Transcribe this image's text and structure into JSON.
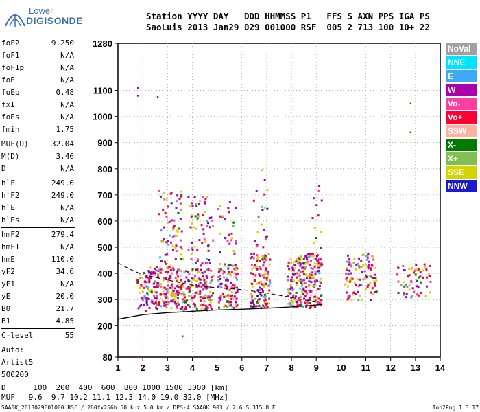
{
  "logo": {
    "line1": "Lowell",
    "line2": "DIGISONDE"
  },
  "header": {
    "line1": "Station YYYY DAY   DDD HHMMSS P1   FFS S AXN PPS IGA PS",
    "line2": "SaoLuis 2013 Jan29 029 001000 RSF  005 2 713 100 10+ 22"
  },
  "params": [
    {
      "name": "foF2",
      "value": "9.250"
    },
    {
      "name": "foF1",
      "value": "N/A"
    },
    {
      "name": "foF1p",
      "value": "N/A"
    },
    {
      "name": "foE",
      "value": "N/A"
    },
    {
      "name": "foEp",
      "value": "0.48"
    },
    {
      "name": "fxI",
      "value": "N/A"
    },
    {
      "name": "foEs",
      "value": "N/A"
    },
    {
      "name": "fmin",
      "value": "1.75"
    },
    {
      "divider": true
    },
    {
      "name": "MUF(D)",
      "value": "32.04"
    },
    {
      "name": "M(D)",
      "value": "3.46"
    },
    {
      "name": "D",
      "value": "N/A"
    },
    {
      "divider": true
    },
    {
      "name": "h`F",
      "value": "249.0"
    },
    {
      "name": "h`F2",
      "value": "249.0"
    },
    {
      "name": "h`E",
      "value": "N/A"
    },
    {
      "name": "h`Es",
      "value": "N/A"
    },
    {
      "divider": true
    },
    {
      "name": "hmF2",
      "value": "279.4"
    },
    {
      "name": "hmF1",
      "value": "N/A"
    },
    {
      "name": "hmE",
      "value": "110.0"
    },
    {
      "name": "yF2",
      "value": "34.6"
    },
    {
      "name": "yF1",
      "value": "N/A"
    },
    {
      "name": "yE",
      "value": "20.0"
    },
    {
      "name": "B0",
      "value": "21.7"
    },
    {
      "name": "B1",
      "value": "4.85"
    },
    {
      "divider": true
    },
    {
      "name": "C-level",
      "value": "55"
    },
    {
      "divider": true
    }
  ],
  "autoscaling": {
    "line1": "Auto:",
    "line2": "Artist5",
    "line3": "500200"
  },
  "legend": [
    {
      "label": "NoVal",
      "color": "#a0a0a0"
    },
    {
      "label": "NNE",
      "color": "#00e5ff"
    },
    {
      "label": "E",
      "color": "#3fa9f5"
    },
    {
      "label": "W",
      "color": "#aa00aa"
    },
    {
      "label": "Vo-",
      "color": "#ff3fa0"
    },
    {
      "label": "Vo+",
      "color": "#ff0033"
    },
    {
      "label": "SSW",
      "color": "#ffb0a0"
    },
    {
      "label": "X-",
      "color": "#007a00"
    },
    {
      "label": "X+",
      "color": "#80c050"
    },
    {
      "label": "SSE",
      "color": "#d4d400"
    },
    {
      "label": "NNW",
      "color": "#1a1ad0"
    }
  ],
  "bottom": {
    "line1": "D      100  200  400  600  800 1000 1500 3000 [km]",
    "line2": "MUF   9.6  9.7 10.2 11.1 12.3 14.0 19.0 32.0 [MHz]"
  },
  "footer": {
    "left": "SAA0K_2013029001000.RSF / 260fx256h 50 kHz 5.0 km / DPS-4 SAA0K 903 / 2.6 S 315.8 E",
    "right": "Ion2Png 1.3.17"
  },
  "chart_data": {
    "type": "scatter",
    "title": "",
    "xlabel": "",
    "ylabel": "",
    "xlim": [
      1,
      14
    ],
    "ylim": [
      80,
      1280
    ],
    "x_ticks": [
      1,
      2,
      3,
      4,
      5,
      6,
      7,
      8,
      9,
      10,
      11,
      12,
      13,
      14
    ],
    "y_ticks": [
      80,
      200,
      300,
      400,
      500,
      600,
      700,
      800,
      900,
      1000,
      1100,
      1280
    ],
    "profile_curve": {
      "x": [
        1.0,
        2.0,
        3.0,
        4.0,
        5.0,
        6.0,
        7.0,
        8.0,
        9.0,
        9.25
      ],
      "y": [
        225,
        242,
        250,
        255,
        260,
        263,
        267,
        272,
        279,
        282
      ]
    },
    "dashed_curve": {
      "x": [
        1.0,
        1.5,
        2.0,
        3.0,
        4.0,
        5.0,
        6.0,
        7.0,
        8.0,
        9.0
      ],
      "y": [
        440,
        415,
        395,
        375,
        355,
        345,
        338,
        325,
        308,
        290
      ]
    },
    "echo_clusters": [
      {
        "x": [
          1.75,
          2.2
        ],
        "y": [
          260,
          420
        ],
        "density": 0.6
      },
      {
        "x": [
          2.2,
          3.2
        ],
        "y": [
          265,
          430
        ],
        "density": 0.9
      },
      {
        "x": [
          2.6,
          3.6
        ],
        "y": [
          430,
          720
        ],
        "density": 0.25
      },
      {
        "x": [
          3.2,
          4.8
        ],
        "y": [
          260,
          420
        ],
        "density": 0.85
      },
      {
        "x": [
          3.8,
          4.8
        ],
        "y": [
          430,
          700
        ],
        "density": 0.25
      },
      {
        "x": [
          5.0,
          5.8
        ],
        "y": [
          270,
          440
        ],
        "density": 0.8
      },
      {
        "x": [
          5.0,
          5.8
        ],
        "y": [
          450,
          680
        ],
        "density": 0.15
      },
      {
        "x": [
          6.3,
          7.1
        ],
        "y": [
          270,
          480
        ],
        "density": 0.8
      },
      {
        "x": [
          6.4,
          7.0
        ],
        "y": [
          500,
          800
        ],
        "density": 0.12
      },
      {
        "x": [
          7.8,
          9.2
        ],
        "y": [
          270,
          480
        ],
        "density": 0.85
      },
      {
        "x": [
          8.8,
          9.2
        ],
        "y": [
          500,
          800
        ],
        "density": 0.1
      },
      {
        "x": [
          10.1,
          11.4
        ],
        "y": [
          300,
          480
        ],
        "density": 0.5
      },
      {
        "x": [
          12.2,
          13.6
        ],
        "y": [
          310,
          440
        ],
        "density": 0.35
      }
    ],
    "extra_points": [
      {
        "x": 1.8,
        "y": 1110
      },
      {
        "x": 1.8,
        "y": 1080
      },
      {
        "x": 2.6,
        "y": 1075
      },
      {
        "x": 12.8,
        "y": 1050
      },
      {
        "x": 12.8,
        "y": 940
      },
      {
        "x": 3.6,
        "y": 160
      },
      {
        "x": 1.8,
        "y": 80
      }
    ]
  }
}
